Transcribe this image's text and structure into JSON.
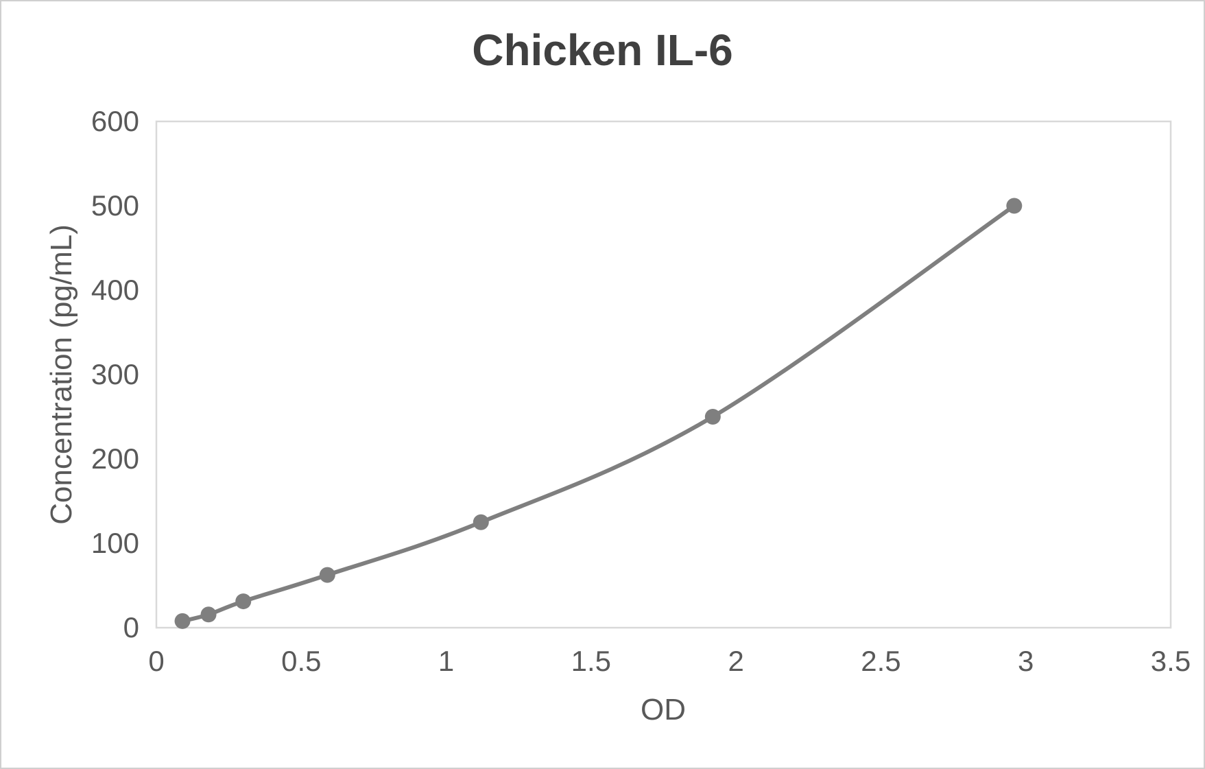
{
  "chart_data": {
    "type": "line",
    "title": "Chicken IL-6",
    "xlabel": "OD",
    "ylabel": "Concentration (pg/mL)",
    "x": [
      0.09,
      0.18,
      0.3,
      0.59,
      1.12,
      1.92,
      2.96
    ],
    "y": [
      7.8,
      15.6,
      31.25,
      62.5,
      125,
      250,
      500
    ],
    "xlim": [
      0,
      3.5
    ],
    "ylim": [
      0,
      600
    ],
    "x_ticks": [
      {
        "value": 0,
        "label": "0"
      },
      {
        "value": 0.5,
        "label": "0.5"
      },
      {
        "value": 1,
        "label": "1"
      },
      {
        "value": 1.5,
        "label": "1.5"
      },
      {
        "value": 2,
        "label": "2"
      },
      {
        "value": 2.5,
        "label": "2.5"
      },
      {
        "value": 3,
        "label": "3"
      },
      {
        "value": 3.5,
        "label": "3.5"
      }
    ],
    "y_ticks": [
      {
        "value": 0,
        "label": "0"
      },
      {
        "value": 100,
        "label": "100"
      },
      {
        "value": 200,
        "label": "200"
      },
      {
        "value": 300,
        "label": "300"
      },
      {
        "value": 400,
        "label": "400"
      },
      {
        "value": 500,
        "label": "500"
      },
      {
        "value": 600,
        "label": "600"
      }
    ],
    "grid": "off",
    "legend": "none",
    "smooth": true,
    "marker": "circle",
    "colors": {
      "series": "#7f7f7f",
      "axis_text": "#595959",
      "title_text": "#404040",
      "plot_border": "#d9d9d9"
    }
  }
}
